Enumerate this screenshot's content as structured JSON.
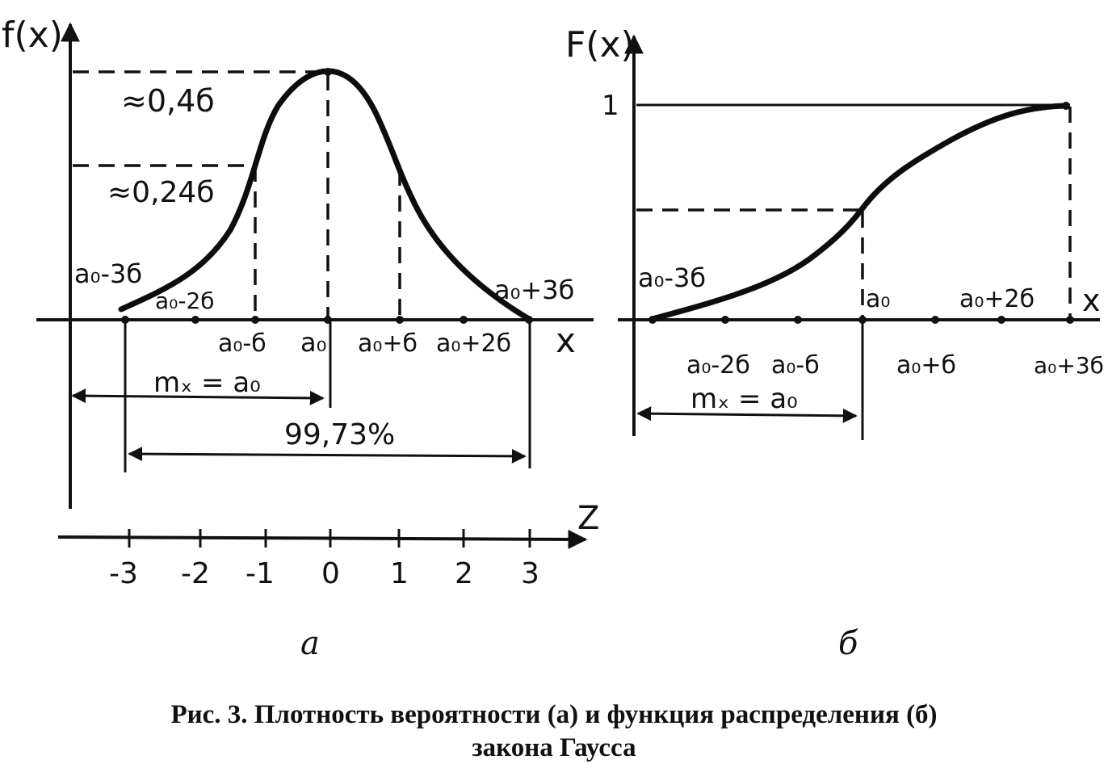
{
  "panel_a": {
    "y_axis_label": "f(x)",
    "x_axis_label": "x",
    "z_axis_label": "Z",
    "peak_label": "≈0,4б",
    "inflection_label": "≈0,24б",
    "labels": {
      "a0_minus_3s": "a₀-3б",
      "a0_minus_2s": "a₀-2б",
      "a0_minus_s": "a₀-б",
      "a0": "a₀",
      "a0_plus_s": "a₀+б",
      "a0_plus_2s": "a₀+2б",
      "a0_plus_3s": "a₀+3б"
    },
    "mean_label": "mₓ = a₀",
    "percent_label": "99,73%",
    "z_ticks": [
      "-3",
      "-2",
      "-1",
      "0",
      "1",
      "2",
      "3"
    ],
    "letter": "а"
  },
  "panel_b": {
    "y_axis_label": "F(x)",
    "x_axis_label": "x",
    "one_label": "1",
    "labels": {
      "a0_minus_3s": "a₀-3б",
      "a0_minus_2s": "a₀-2б",
      "a0_minus_s": "a₀-б",
      "a0": "a₀",
      "a0_plus_s": "a₀+б",
      "a0_plus_2s": "a₀+2б",
      "a0_plus_3s": "a₀+3б"
    },
    "mean_label": "mₓ = a₀",
    "letter": "б"
  },
  "caption": {
    "line1": "Рис. 3. Плотность вероятности (а) и функция распределения (б)",
    "line2": "закона Гаусса"
  }
}
